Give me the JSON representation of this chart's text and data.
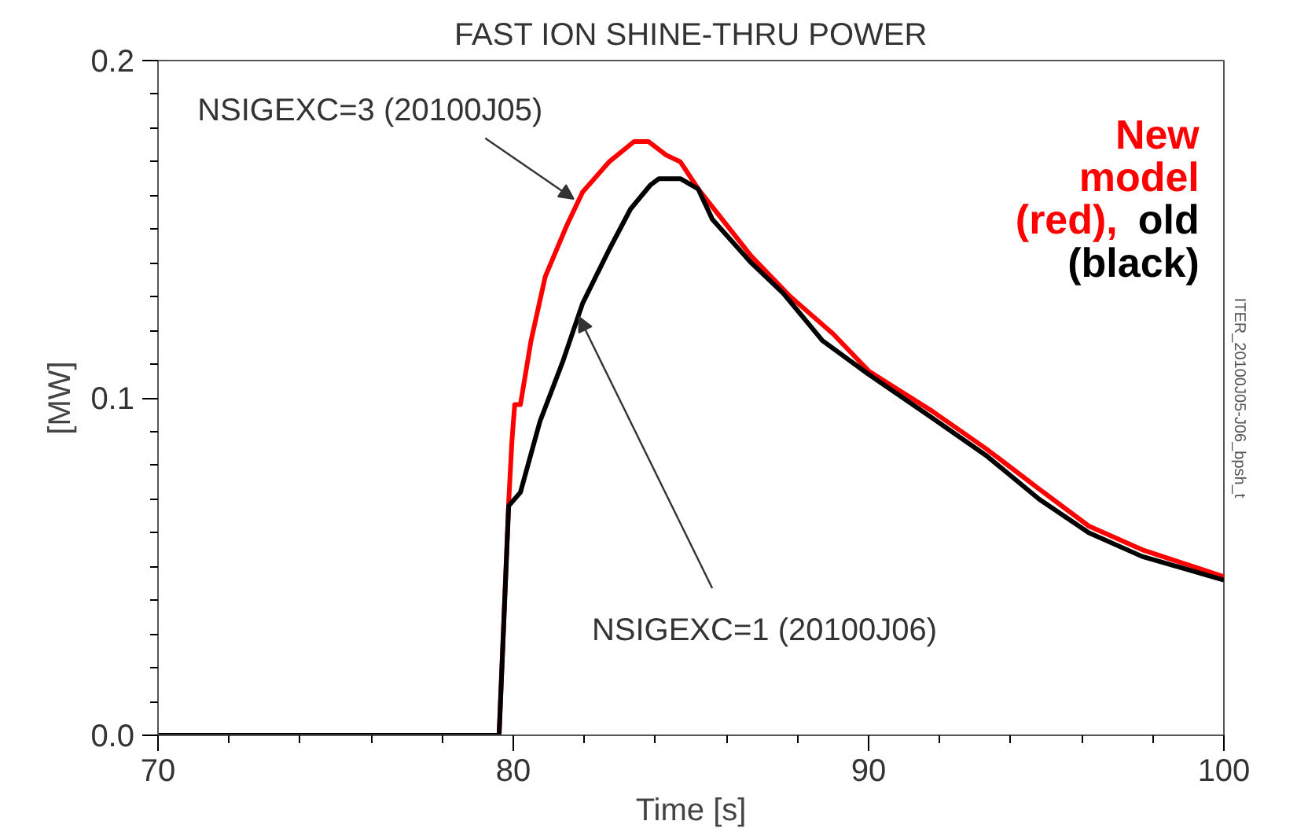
{
  "chart_data": {
    "type": "line",
    "title": "FAST ION SHINE-THRU POWER",
    "xlabel": "Time [s]",
    "ylabel": "[MW]",
    "xlim": [
      70,
      100
    ],
    "ylim": [
      0,
      0.2
    ],
    "xticks": [
      70,
      80,
      90,
      100
    ],
    "yticks": [
      {
        "value": 0,
        "label": "0.0"
      },
      {
        "value": 0.1,
        "label": "0.1"
      },
      {
        "value": 0.2,
        "label": "0.2"
      }
    ],
    "grid": false,
    "marker": "none",
    "line_style": "solid",
    "series": [
      {
        "color": "#ff0000",
        "x": [
          70,
          79.6,
          79.87,
          79.96,
          80.04,
          80.2,
          80.5,
          80.9,
          81.5,
          81.95,
          82.7,
          83.4,
          83.8,
          84.3,
          84.7,
          85.2,
          85.8,
          86.7,
          87.8,
          89.0,
          90.0,
          90.9,
          91.8,
          93.3,
          94.8,
          96.2,
          97.7,
          100
        ],
        "values": [
          0,
          0,
          0.069,
          0.087,
          0.098,
          0.098,
          0.117,
          0.136,
          0.151,
          0.161,
          0.17,
          0.176,
          0.176,
          0.172,
          0.17,
          0.162,
          0.154,
          0.142,
          0.13,
          0.119,
          0.108,
          0.102,
          0.096,
          0.085,
          0.073,
          0.062,
          0.055,
          0.047
        ]
      },
      {
        "color": "#000000",
        "x": [
          70,
          79.6,
          79.87,
          80.2,
          80.75,
          81.4,
          81.95,
          82.7,
          83.3,
          83.85,
          84.1,
          84.7,
          85.2,
          85.6,
          86.7,
          87.6,
          88.7,
          90.0,
          91.8,
          93.3,
          94.8,
          96.2,
          97.7,
          100
        ],
        "values": [
          0,
          0,
          0.068,
          0.072,
          0.093,
          0.111,
          0.128,
          0.144,
          0.156,
          0.163,
          0.165,
          0.165,
          0.162,
          0.153,
          0.14,
          0.131,
          0.117,
          0.107,
          0.094,
          0.083,
          0.07,
          0.06,
          0.053,
          0.046
        ]
      }
    ],
    "annotations": [
      {
        "text": "NSIGEXC=3 (20100J05)",
        "x": 81.7,
        "y": 0.159
      },
      {
        "text": "NSIGEXC=1 (20100J06)",
        "x": 81.85,
        "y": 0.124
      },
      "New model (red),",
      "old (black)",
      "ITER_20100J05-J06_bpsh_t"
    ]
  }
}
